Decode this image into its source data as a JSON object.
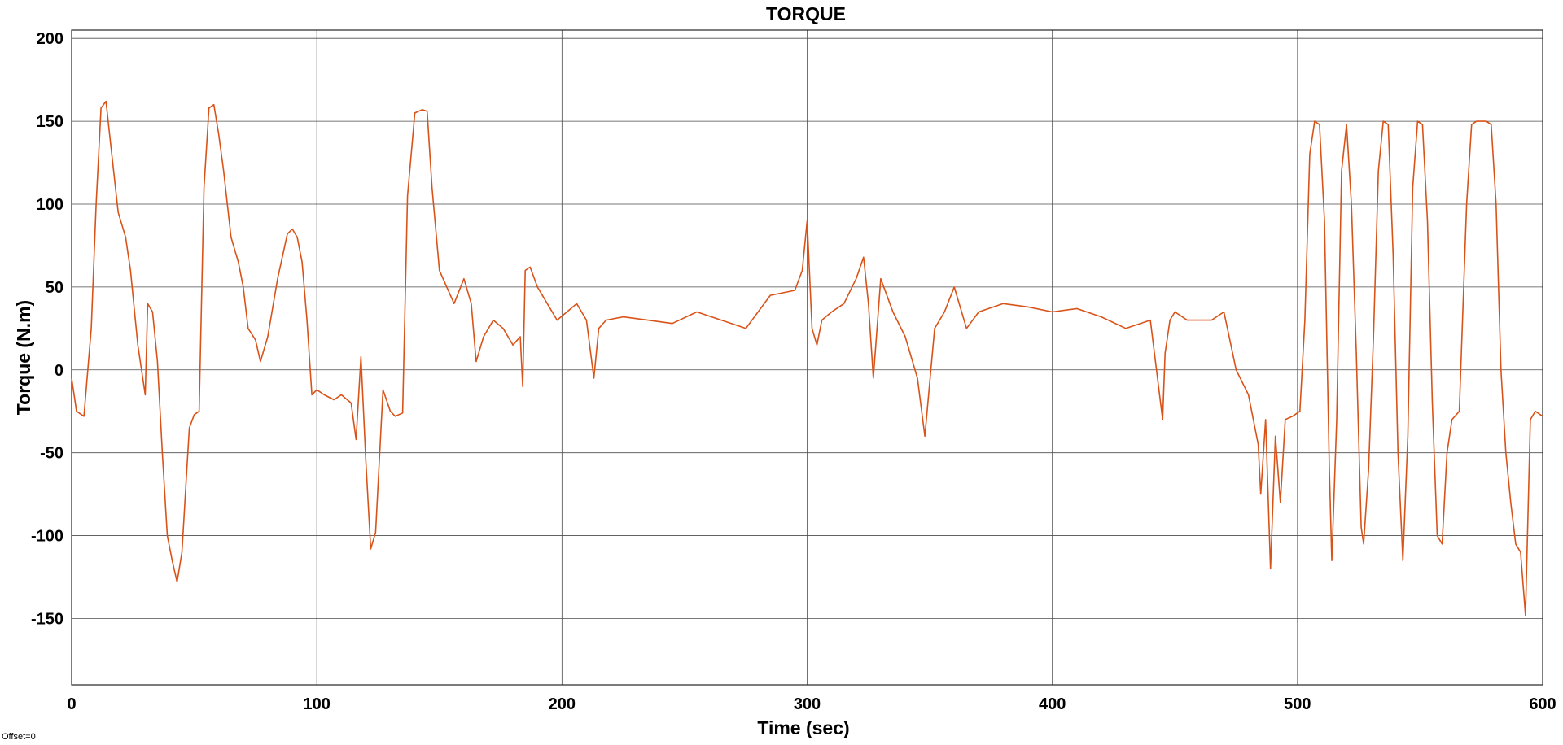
{
  "chart_data": {
    "type": "line",
    "title": "TORQUE",
    "xlabel": "Time (sec)",
    "ylabel": "Torque (N.m)",
    "xlim": [
      0,
      600
    ],
    "ylim": [
      -190,
      205
    ],
    "xticks": [
      0,
      100,
      200,
      300,
      400,
      500,
      600
    ],
    "yticks": [
      -150,
      -100,
      -50,
      0,
      50,
      100,
      150,
      200
    ],
    "grid": true,
    "line_color": "#D95319",
    "series": [
      {
        "x": [
          0,
          2,
          5,
          8,
          10,
          12,
          14,
          16,
          19,
          22,
          24,
          27,
          30,
          31,
          33,
          35,
          37,
          39,
          41,
          43,
          45,
          47,
          48,
          50,
          52,
          54,
          56,
          58,
          60,
          62,
          65,
          68,
          70,
          72,
          75,
          77,
          80,
          84,
          88,
          90,
          92,
          94,
          96,
          98,
          100,
          103,
          107,
          110,
          114,
          116,
          118,
          120,
          122,
          124,
          127,
          130,
          132,
          135,
          137,
          140,
          143,
          145,
          147,
          150,
          153,
          156,
          160,
          163,
          165,
          168,
          172,
          176,
          180,
          183,
          184,
          185,
          187,
          190,
          194,
          198,
          202,
          206,
          210,
          213,
          215,
          218,
          225,
          235,
          245,
          255,
          265,
          275,
          285,
          295,
          298,
          300,
          302,
          304,
          306,
          310,
          315,
          320,
          323,
          325,
          327,
          330,
          335,
          340,
          345,
          348,
          352,
          356,
          360,
          365,
          370,
          380,
          390,
          400,
          410,
          420,
          430,
          440,
          445,
          446,
          448,
          450,
          455,
          460,
          465,
          470,
          475,
          480,
          482,
          484,
          485,
          487,
          489,
          491,
          493,
          495,
          498,
          501,
          503,
          505,
          507,
          509,
          511,
          513,
          514,
          516,
          518,
          520,
          522,
          524,
          526,
          527,
          529,
          531,
          533,
          535,
          537,
          539,
          541,
          543,
          545,
          547,
          549,
          551,
          553,
          555,
          557,
          559,
          561,
          563,
          566,
          569,
          571,
          573,
          575,
          577,
          579,
          581,
          583,
          585,
          587,
          589,
          591,
          593,
          595,
          597,
          600
        ],
        "y": [
          -5,
          -25,
          -28,
          25,
          100,
          158,
          162,
          135,
          95,
          80,
          60,
          15,
          -15,
          40,
          35,
          5,
          -50,
          -100,
          -115,
          -128,
          -110,
          -60,
          -35,
          -27,
          -25,
          110,
          158,
          160,
          142,
          120,
          80,
          65,
          50,
          25,
          18,
          5,
          20,
          55,
          82,
          85,
          80,
          65,
          30,
          -15,
          -12,
          -15,
          -18,
          -15,
          -20,
          -42,
          8,
          -55,
          -108,
          -98,
          -12,
          -25,
          -28,
          -26,
          105,
          155,
          157,
          156,
          110,
          60,
          50,
          40,
          55,
          40,
          5,
          20,
          30,
          25,
          15,
          20,
          -10,
          60,
          62,
          50,
          40,
          30,
          35,
          40,
          30,
          -5,
          25,
          30,
          32,
          30,
          28,
          35,
          30,
          25,
          45,
          48,
          60,
          90,
          25,
          15,
          30,
          35,
          40,
          55,
          68,
          40,
          -5,
          55,
          35,
          20,
          -5,
          -40,
          25,
          35,
          50,
          25,
          35,
          40,
          38,
          35,
          37,
          32,
          25,
          30,
          -30,
          10,
          30,
          35,
          30,
          30,
          30,
          35,
          0,
          -15,
          -30,
          -45,
          -75,
          -30,
          -120,
          -40,
          -80,
          -30,
          -28,
          -25,
          30,
          130,
          150,
          148,
          90,
          -60,
          -115,
          -30,
          120,
          148,
          100,
          10,
          -95,
          -105,
          -60,
          20,
          120,
          150,
          148,
          70,
          -50,
          -115,
          -40,
          110,
          150,
          148,
          90,
          -20,
          -100,
          -105,
          -50,
          -30,
          -25,
          100,
          148,
          150,
          150,
          150,
          148,
          100,
          0,
          -50,
          -80,
          -105,
          -110,
          -148,
          -30,
          -25,
          -28
        ]
      }
    ]
  },
  "footnote": "Offset=0"
}
